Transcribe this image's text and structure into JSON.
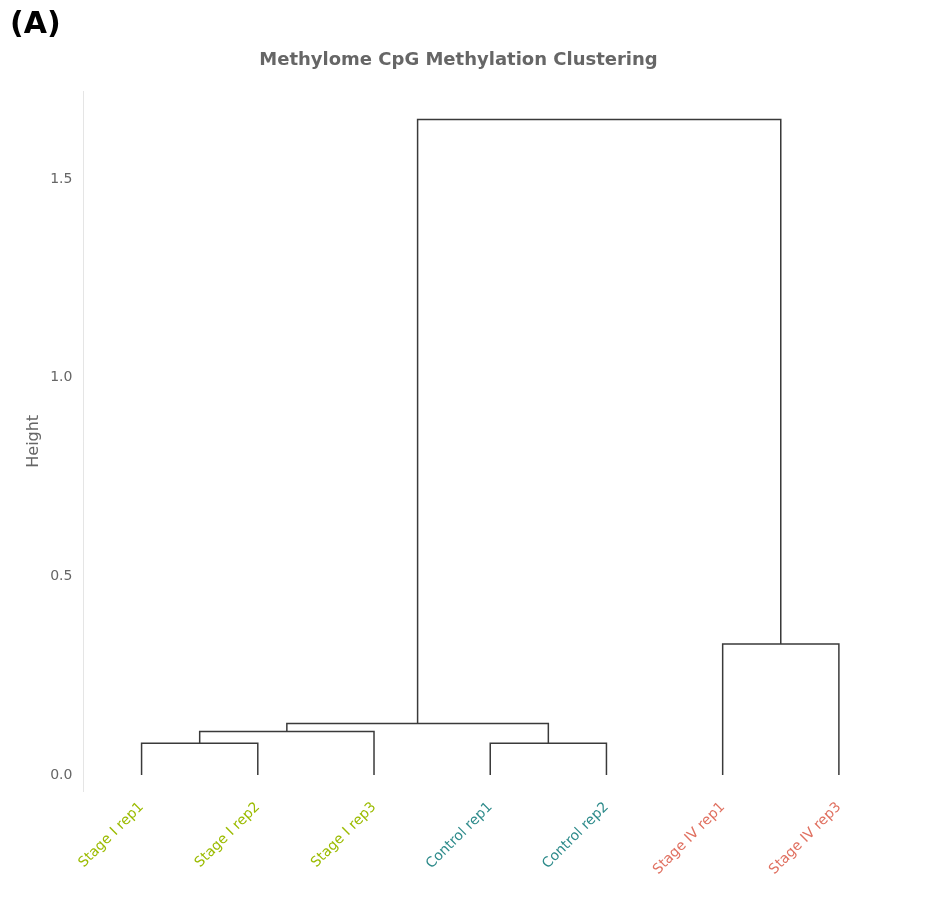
{
  "chart_data": {
    "type": "dendrogram",
    "title": "Methylome CpG Methylation Clustering",
    "ylabel": "Height",
    "annotation": "(A)",
    "categories": [
      "Stage I rep1",
      "Stage I rep2",
      "Stage I rep3",
      "Control rep1",
      "Control rep2",
      "Stage IV rep1",
      "Stage IV rep3"
    ],
    "colors": [
      "#9BBB00",
      "#9BBB00",
      "#9BBB00",
      "#2E8B8B",
      "#2E8B8B",
      "#E07060",
      "#E07060"
    ],
    "color": "#3a3a3a",
    "merges": [
      {
        "left": 0,
        "right": 1,
        "height": 0.08
      },
      {
        "left": 7,
        "right": 2,
        "height": 0.11
      },
      {
        "left": 3,
        "right": 4,
        "height": 0.08
      },
      {
        "left": 8,
        "right": 9,
        "height": 0.13
      },
      {
        "left": 5,
        "right": 6,
        "height": 0.33
      },
      {
        "left": 10,
        "right": 11,
        "height": 1.65
      }
    ],
    "ylim": [
      -0.04,
      1.72
    ],
    "yticks": [
      {
        "value": 0,
        "label": "0.0"
      },
      0.5,
      {
        "value": 1,
        "label": "1.0"
      },
      1.5
    ],
    "grid": false
  }
}
